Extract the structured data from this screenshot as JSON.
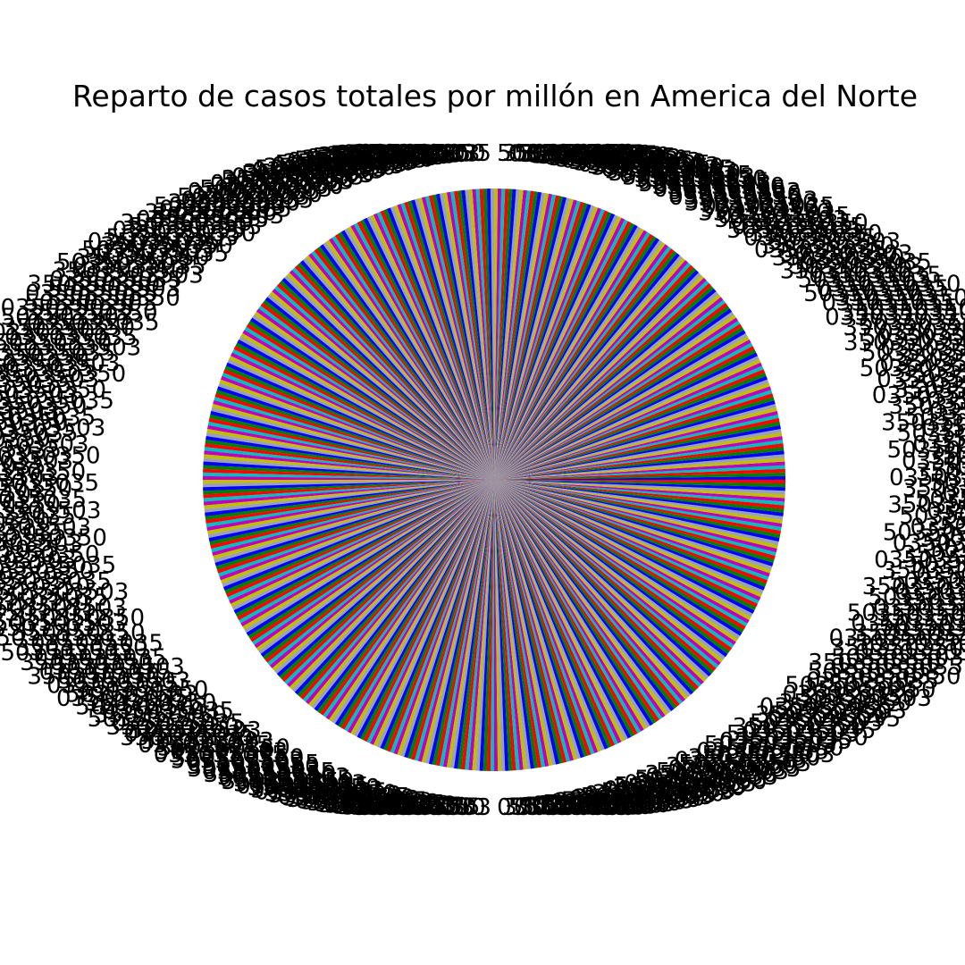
{
  "chart_data": {
    "type": "pie",
    "title": "Reparto de casos totales por millón en America del Norte",
    "slice_count": 500,
    "start_angle_deg": 0,
    "direction": "counterclockwise",
    "values": "approximately equal slices; individual values and labels are illegible due to overlapping text",
    "colors": [
      "#0000ff",
      "#008000",
      "#ff0000",
      "#00bfbf",
      "#bf00bf",
      "#bfbf00",
      "#9aa0b8"
    ],
    "visible_label_fragments": [
      "0",
      "3",
      "5"
    ],
    "legend": "none",
    "grid": false
  }
}
